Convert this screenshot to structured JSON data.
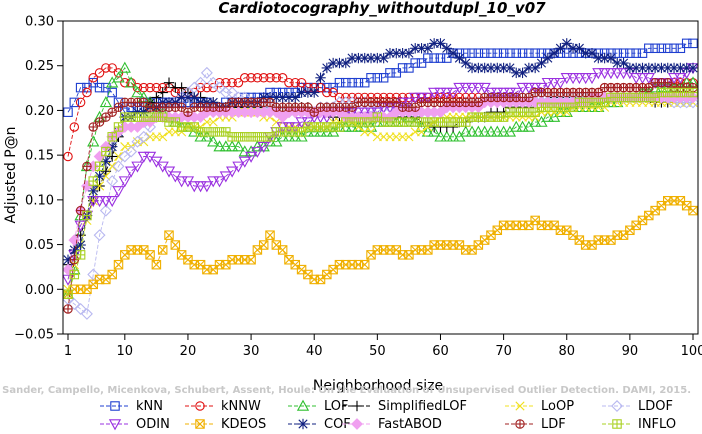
{
  "chart_data": {
    "type": "line",
    "title": "Cardiotocography_withoutdupl_10_v07",
    "xlabel": "Neighborhood size",
    "ylabel": "Adjusted P@n",
    "xlim": [
      1,
      100
    ],
    "ylim": [
      -0.05,
      0.3
    ],
    "x_ticks": [
      1,
      10,
      20,
      30,
      40,
      50,
      60,
      70,
      80,
      90,
      100
    ],
    "y_ticks": [
      -0.05,
      0.0,
      0.05,
      0.1,
      0.15,
      0.2,
      0.25,
      0.3
    ],
    "y_tick_labels": [
      "−0.05",
      "0.00",
      "0.05",
      "0.10",
      "0.15",
      "0.20",
      "0.25",
      "0.30"
    ],
    "grid": false,
    "legend_position": "bottom",
    "watermark": "Campos, Zimek, Sander, Campello, Micenkova, Schubert, Assent, Houle: On the Evaluation of Unsupervised Outlier Detection. DAMI, 2015.",
    "series": [
      {
        "name": "kNN",
        "color": "#1f3fd0",
        "marker": "square",
        "keys": [
          [
            1,
            0.2
          ],
          [
            2,
            0.21
          ],
          [
            3,
            0.225
          ],
          [
            5,
            0.23
          ],
          [
            8,
            0.22
          ],
          [
            10,
            0.2
          ],
          [
            14,
            0.21
          ],
          [
            20,
            0.21
          ],
          [
            25,
            0.205
          ],
          [
            30,
            0.215
          ],
          [
            35,
            0.22
          ],
          [
            40,
            0.225
          ],
          [
            45,
            0.23
          ],
          [
            50,
            0.235
          ],
          [
            55,
            0.25
          ],
          [
            60,
            0.26
          ],
          [
            65,
            0.265
          ],
          [
            70,
            0.265
          ],
          [
            80,
            0.265
          ],
          [
            90,
            0.265
          ],
          [
            98,
            0.27
          ],
          [
            100,
            0.277
          ]
        ]
      },
      {
        "name": "kNNW",
        "color": "#e01010",
        "marker": "circle",
        "keys": [
          [
            1,
            0.15
          ],
          [
            3,
            0.21
          ],
          [
            5,
            0.235
          ],
          [
            8,
            0.25
          ],
          [
            10,
            0.23
          ],
          [
            15,
            0.225
          ],
          [
            20,
            0.22
          ],
          [
            25,
            0.23
          ],
          [
            30,
            0.235
          ],
          [
            35,
            0.235
          ],
          [
            40,
            0.225
          ],
          [
            45,
            0.215
          ],
          [
            50,
            0.215
          ],
          [
            60,
            0.215
          ],
          [
            70,
            0.215
          ],
          [
            80,
            0.22
          ],
          [
            90,
            0.225
          ],
          [
            95,
            0.23
          ],
          [
            100,
            0.23
          ]
        ]
      },
      {
        "name": "LOF",
        "color": "#30c030",
        "marker": "triangle",
        "keys": [
          [
            1,
            -0.005
          ],
          [
            2,
            0.02
          ],
          [
            4,
            0.14
          ],
          [
            6,
            0.19
          ],
          [
            8,
            0.23
          ],
          [
            10,
            0.245
          ],
          [
            12,
            0.22
          ],
          [
            15,
            0.2
          ],
          [
            20,
            0.18
          ],
          [
            25,
            0.16
          ],
          [
            30,
            0.155
          ],
          [
            35,
            0.17
          ],
          [
            40,
            0.175
          ],
          [
            45,
            0.18
          ],
          [
            50,
            0.185
          ],
          [
            55,
            0.19
          ],
          [
            60,
            0.17
          ],
          [
            65,
            0.175
          ],
          [
            70,
            0.175
          ],
          [
            75,
            0.185
          ],
          [
            80,
            0.2
          ],
          [
            85,
            0.205
          ],
          [
            90,
            0.215
          ],
          [
            95,
            0.225
          ],
          [
            100,
            0.23
          ]
        ]
      },
      {
        "name": "SimplifiedLOF",
        "color": "#000000",
        "marker": "plus",
        "keys": [
          [
            1,
            0.03
          ],
          [
            3,
            0.06
          ],
          [
            5,
            0.1
          ],
          [
            8,
            0.15
          ],
          [
            10,
            0.19
          ],
          [
            13,
            0.2
          ],
          [
            17,
            0.23
          ],
          [
            20,
            0.22
          ],
          [
            25,
            0.205
          ],
          [
            30,
            0.2
          ],
          [
            35,
            0.205
          ],
          [
            40,
            0.2
          ],
          [
            45,
            0.19
          ],
          [
            50,
            0.19
          ],
          [
            55,
            0.195
          ],
          [
            60,
            0.18
          ],
          [
            65,
            0.19
          ],
          [
            70,
            0.2
          ],
          [
            80,
            0.215
          ],
          [
            90,
            0.215
          ],
          [
            95,
            0.21
          ],
          [
            100,
            0.215
          ]
        ]
      },
      {
        "name": "LoOP",
        "color": "#f0e020",
        "marker": "cross",
        "keys": [
          [
            1,
            0.0
          ],
          [
            3,
            0.05
          ],
          [
            5,
            0.1
          ],
          [
            8,
            0.14
          ],
          [
            10,
            0.16
          ],
          [
            15,
            0.17
          ],
          [
            20,
            0.18
          ],
          [
            25,
            0.19
          ],
          [
            30,
            0.2
          ],
          [
            35,
            0.185
          ],
          [
            40,
            0.18
          ],
          [
            45,
            0.19
          ],
          [
            50,
            0.17
          ],
          [
            55,
            0.17
          ],
          [
            60,
            0.19
          ],
          [
            65,
            0.19
          ],
          [
            70,
            0.19
          ],
          [
            80,
            0.2
          ],
          [
            90,
            0.21
          ],
          [
            100,
            0.21
          ]
        ]
      },
      {
        "name": "LDOF",
        "color": "#b8b8f0",
        "marker": "diamond",
        "keys": [
          [
            1,
            -0.01
          ],
          [
            4,
            -0.025
          ],
          [
            6,
            0.06
          ],
          [
            8,
            0.12
          ],
          [
            10,
            0.15
          ],
          [
            13,
            0.17
          ],
          [
            16,
            0.2
          ],
          [
            20,
            0.22
          ],
          [
            23,
            0.24
          ],
          [
            25,
            0.225
          ],
          [
            30,
            0.21
          ],
          [
            35,
            0.2
          ],
          [
            40,
            0.2
          ],
          [
            45,
            0.21
          ],
          [
            50,
            0.205
          ],
          [
            55,
            0.2
          ],
          [
            60,
            0.2
          ],
          [
            65,
            0.21
          ],
          [
            70,
            0.215
          ],
          [
            80,
            0.215
          ],
          [
            90,
            0.215
          ],
          [
            100,
            0.21
          ]
        ]
      },
      {
        "name": "ODIN",
        "color": "#9a30e0",
        "marker": "triangle-down",
        "keys": [
          [
            1,
            0.01
          ],
          [
            3,
            0.07
          ],
          [
            5,
            0.1
          ],
          [
            8,
            0.1
          ],
          [
            10,
            0.12
          ],
          [
            13,
            0.15
          ],
          [
            15,
            0.145
          ],
          [
            18,
            0.125
          ],
          [
            22,
            0.115
          ],
          [
            25,
            0.12
          ],
          [
            30,
            0.15
          ],
          [
            35,
            0.18
          ],
          [
            40,
            0.19
          ],
          [
            45,
            0.2
          ],
          [
            50,
            0.2
          ],
          [
            55,
            0.21
          ],
          [
            60,
            0.22
          ],
          [
            65,
            0.225
          ],
          [
            70,
            0.22
          ],
          [
            75,
            0.225
          ],
          [
            80,
            0.235
          ],
          [
            85,
            0.24
          ],
          [
            90,
            0.24
          ],
          [
            95,
            0.23
          ],
          [
            100,
            0.245
          ]
        ]
      },
      {
        "name": "KDEOS",
        "color": "#f0b000",
        "marker": "square-x",
        "keys": [
          [
            1,
            -0.005
          ],
          [
            3,
            0.0
          ],
          [
            5,
            0.005
          ],
          [
            8,
            0.015
          ],
          [
            10,
            0.04
          ],
          [
            13,
            0.045
          ],
          [
            15,
            0.03
          ],
          [
            17,
            0.06
          ],
          [
            19,
            0.04
          ],
          [
            21,
            0.03
          ],
          [
            23,
            0.02
          ],
          [
            26,
            0.03
          ],
          [
            30,
            0.035
          ],
          [
            33,
            0.06
          ],
          [
            36,
            0.035
          ],
          [
            40,
            0.01
          ],
          [
            43,
            0.02
          ],
          [
            45,
            0.03
          ],
          [
            48,
            0.03
          ],
          [
            50,
            0.045
          ],
          [
            55,
            0.04
          ],
          [
            60,
            0.05
          ],
          [
            65,
            0.045
          ],
          [
            70,
            0.07
          ],
          [
            75,
            0.075
          ],
          [
            80,
            0.065
          ],
          [
            83,
            0.05
          ],
          [
            87,
            0.055
          ],
          [
            90,
            0.065
          ],
          [
            93,
            0.08
          ],
          [
            96,
            0.1
          ],
          [
            98,
            0.1
          ],
          [
            100,
            0.09
          ]
        ]
      },
      {
        "name": "COF",
        "color": "#102080",
        "marker": "asterisk",
        "keys": [
          [
            1,
            0.035
          ],
          [
            3,
            0.05
          ],
          [
            5,
            0.11
          ],
          [
            8,
            0.16
          ],
          [
            10,
            0.19
          ],
          [
            13,
            0.2
          ],
          [
            17,
            0.21
          ],
          [
            20,
            0.215
          ],
          [
            25,
            0.205
          ],
          [
            30,
            0.21
          ],
          [
            35,
            0.215
          ],
          [
            40,
            0.22
          ],
          [
            42,
            0.25
          ],
          [
            45,
            0.255
          ],
          [
            50,
            0.26
          ],
          [
            55,
            0.265
          ],
          [
            60,
            0.275
          ],
          [
            63,
            0.26
          ],
          [
            66,
            0.245
          ],
          [
            70,
            0.25
          ],
          [
            73,
            0.24
          ],
          [
            77,
            0.26
          ],
          [
            80,
            0.275
          ],
          [
            85,
            0.26
          ],
          [
            90,
            0.25
          ],
          [
            95,
            0.245
          ],
          [
            100,
            0.245
          ]
        ]
      },
      {
        "name": "FastABOD",
        "color": "#f0a0f0",
        "marker": "diamond-filled",
        "keys": [
          [
            1,
            0.02
          ],
          [
            3,
            0.09
          ],
          [
            5,
            0.14
          ],
          [
            8,
            0.17
          ],
          [
            10,
            0.18
          ],
          [
            15,
            0.19
          ],
          [
            20,
            0.19
          ],
          [
            25,
            0.2
          ],
          [
            30,
            0.2
          ],
          [
            35,
            0.195
          ],
          [
            40,
            0.2
          ],
          [
            45,
            0.195
          ],
          [
            50,
            0.19
          ],
          [
            55,
            0.2
          ],
          [
            60,
            0.2
          ],
          [
            65,
            0.205
          ],
          [
            70,
            0.21
          ],
          [
            80,
            0.21
          ],
          [
            90,
            0.215
          ],
          [
            100,
            0.215
          ]
        ]
      },
      {
        "name": "LDF",
        "color": "#a02020",
        "marker": "circle-plus",
        "keys": [
          [
            1,
            -0.02
          ],
          [
            3,
            0.09
          ],
          [
            5,
            0.18
          ],
          [
            8,
            0.2
          ],
          [
            10,
            0.21
          ],
          [
            15,
            0.205
          ],
          [
            20,
            0.2
          ],
          [
            25,
            0.205
          ],
          [
            30,
            0.21
          ],
          [
            35,
            0.205
          ],
          [
            40,
            0.2
          ],
          [
            45,
            0.205
          ],
          [
            50,
            0.21
          ],
          [
            55,
            0.205
          ],
          [
            60,
            0.21
          ],
          [
            65,
            0.21
          ],
          [
            70,
            0.215
          ],
          [
            80,
            0.22
          ],
          [
            90,
            0.225
          ],
          [
            95,
            0.23
          ],
          [
            100,
            0.225
          ]
        ]
      },
      {
        "name": "INFLO",
        "color": "#a8d020",
        "marker": "square-plus",
        "keys": [
          [
            1,
            -0.005
          ],
          [
            3,
            0.04
          ],
          [
            5,
            0.12
          ],
          [
            8,
            0.17
          ],
          [
            10,
            0.19
          ],
          [
            15,
            0.195
          ],
          [
            20,
            0.18
          ],
          [
            25,
            0.175
          ],
          [
            30,
            0.17
          ],
          [
            35,
            0.175
          ],
          [
            40,
            0.18
          ],
          [
            45,
            0.185
          ],
          [
            50,
            0.19
          ],
          [
            60,
            0.185
          ],
          [
            70,
            0.195
          ],
          [
            80,
            0.205
          ],
          [
            90,
            0.215
          ],
          [
            100,
            0.22
          ]
        ]
      }
    ]
  }
}
